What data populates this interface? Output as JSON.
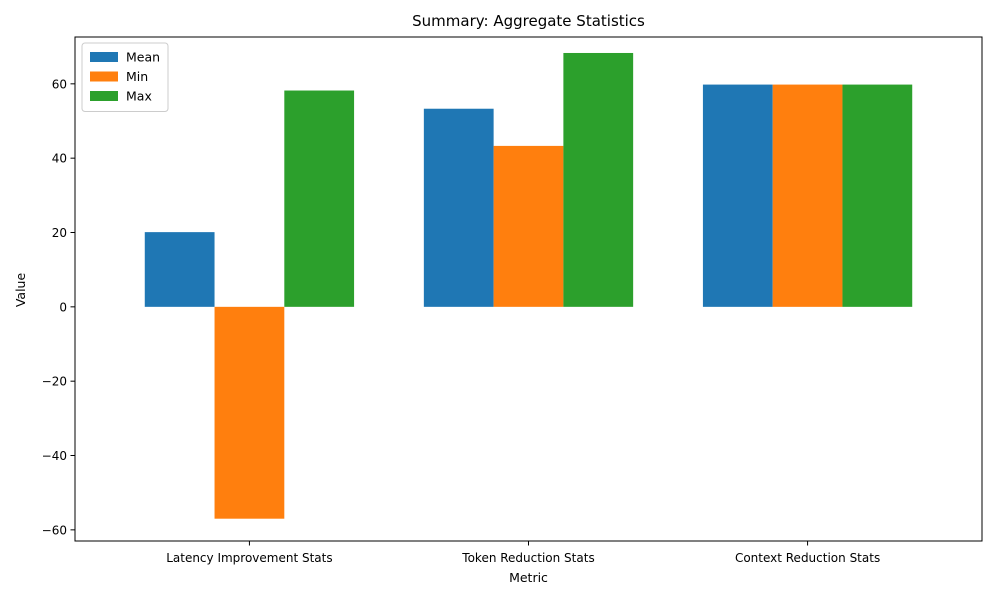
{
  "chart_data": {
    "type": "bar",
    "title": "Summary: Aggregate Statistics",
    "xlabel": "Metric",
    "ylabel": "Value",
    "categories": [
      "Latency Improvement Stats",
      "Token Reduction Stats",
      "Context Reduction Stats"
    ],
    "series": [
      {
        "name": "Mean",
        "color": "#1f77b4",
        "values": [
          20.1,
          53.3,
          59.8
        ]
      },
      {
        "name": "Min",
        "color": "#ff7f0e",
        "values": [
          -57.0,
          43.3,
          59.8
        ]
      },
      {
        "name": "Max",
        "color": "#2ca02c",
        "values": [
          58.2,
          68.3,
          59.8
        ]
      }
    ],
    "ylim": [
      -63,
      72.6
    ],
    "yticks": [
      -60,
      -40,
      -20,
      0,
      20,
      40,
      60
    ],
    "legend": "top-left",
    "grid": false
  }
}
